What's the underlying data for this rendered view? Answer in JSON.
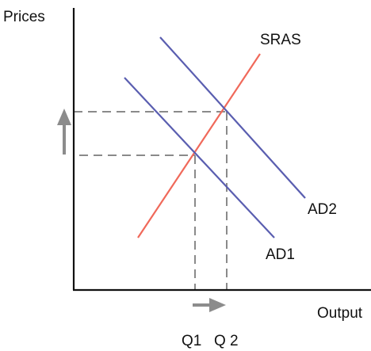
{
  "diagram": {
    "axes": {
      "y_label": "Prices",
      "x_label": "Output"
    },
    "curves": {
      "sras": {
        "label": "SRAS",
        "color": "#f0695a"
      },
      "ad1": {
        "label": "AD1",
        "color": "#5a5eb0"
      },
      "ad2": {
        "label": "AD2",
        "color": "#5a5eb0"
      }
    },
    "quantities": {
      "q1": "Q1",
      "q2": "Q 2"
    },
    "guide_color": "#8a8a8a",
    "arrows": {
      "price_arrow": {
        "icon": "up-arrow-icon",
        "color": "#8c8c8c"
      },
      "output_arrow": {
        "icon": "right-arrow-icon",
        "color": "#8c8c8c"
      }
    }
  }
}
